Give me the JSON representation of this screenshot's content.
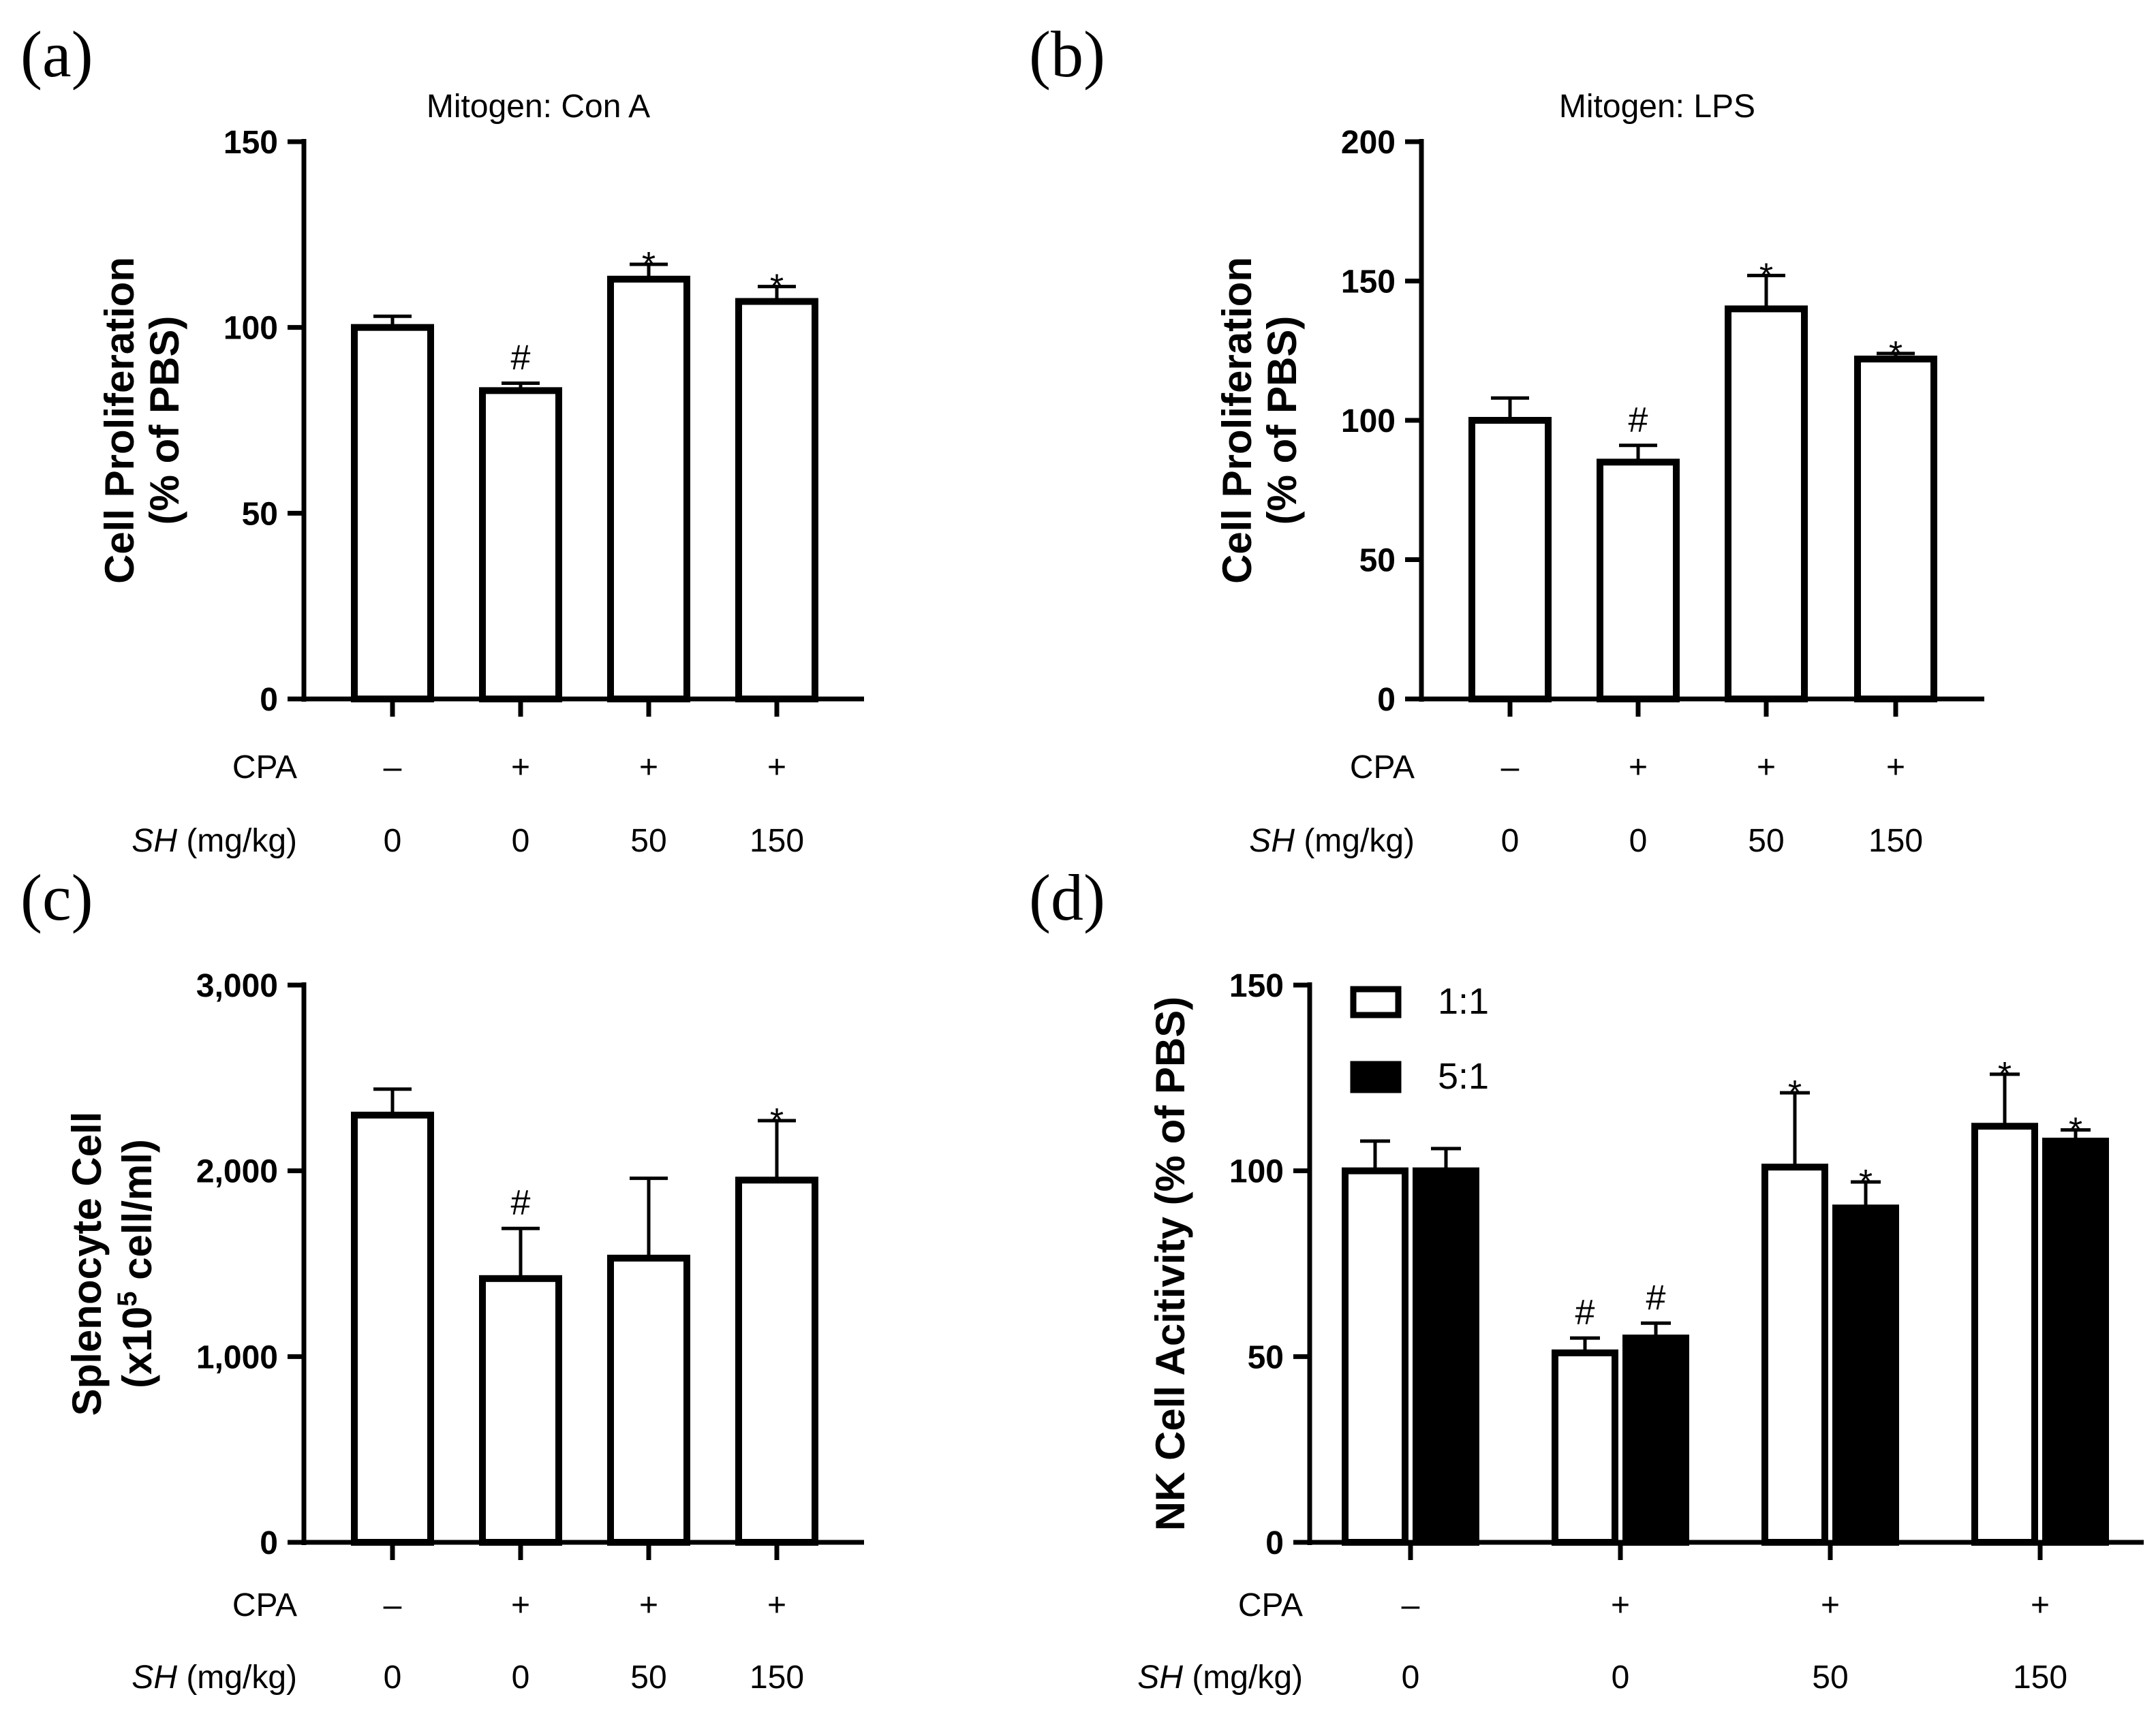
{
  "chart_data": [
    {
      "type": "bar",
      "panel": "(a)",
      "title": "Mitogen: Con A",
      "ylabel_lines": [
        "Cell Proliferation",
        "(% of PBS)"
      ],
      "ylim": [
        0,
        150
      ],
      "yticks": [
        0,
        50,
        100,
        150
      ],
      "ytick_labels": [
        "0",
        "50",
        "100",
        "150"
      ],
      "row_labels": {
        "cpa": "CPA",
        "sh_italic": "SH",
        "sh_units": " (mg/kg)"
      },
      "categories": [
        {
          "cpa": "–",
          "sh": "0"
        },
        {
          "cpa": "+",
          "sh": "0"
        },
        {
          "cpa": "+",
          "sh": "50"
        },
        {
          "cpa": "+",
          "sh": "150"
        }
      ],
      "series": [
        {
          "name": "",
          "fill": "#ffffff",
          "values": [
            100,
            83,
            113,
            107
          ],
          "errors": [
            3,
            2,
            4,
            4
          ],
          "marks": [
            "",
            "#",
            "*",
            "*"
          ]
        }
      ]
    },
    {
      "type": "bar",
      "panel": "(b)",
      "title": "Mitogen: LPS",
      "ylabel_lines": [
        "Cell Proliferation",
        "(% of PBS)"
      ],
      "ylim": [
        0,
        200
      ],
      "yticks": [
        0,
        50,
        100,
        150,
        200
      ],
      "ytick_labels": [
        "0",
        "50",
        "100",
        "150",
        "200"
      ],
      "row_labels": {
        "cpa": "CPA",
        "sh_italic": "SH",
        "sh_units": " (mg/kg)"
      },
      "categories": [
        {
          "cpa": "–",
          "sh": "0"
        },
        {
          "cpa": "+",
          "sh": "0"
        },
        {
          "cpa": "+",
          "sh": "50"
        },
        {
          "cpa": "+",
          "sh": "150"
        }
      ],
      "series": [
        {
          "name": "",
          "fill": "#ffffff",
          "values": [
            100,
            85,
            140,
            122
          ],
          "errors": [
            8,
            6,
            12,
            2
          ],
          "marks": [
            "",
            "#",
            "*",
            "*"
          ]
        }
      ]
    },
    {
      "type": "bar",
      "panel": "(c)",
      "title": "",
      "ylabel_lines": [
        "Splenocyte Cell",
        "(x10",
        "5",
        " cell/ml)"
      ],
      "ylim": [
        0,
        3000
      ],
      "yticks": [
        0,
        1000,
        2000,
        3000
      ],
      "ytick_labels": [
        "0",
        "1,000",
        "2,000",
        "3,000"
      ],
      "row_labels": {
        "cpa": "CPA",
        "sh_italic": "SH",
        "sh_units": " (mg/kg)"
      },
      "categories": [
        {
          "cpa": "–",
          "sh": "0"
        },
        {
          "cpa": "+",
          "sh": "0"
        },
        {
          "cpa": "+",
          "sh": "50"
        },
        {
          "cpa": "+",
          "sh": "150"
        }
      ],
      "series": [
        {
          "name": "",
          "fill": "#ffffff",
          "values": [
            2300,
            1420,
            1530,
            1950
          ],
          "errors": [
            140,
            270,
            430,
            320
          ],
          "marks": [
            "",
            "#",
            "",
            "*"
          ]
        }
      ]
    },
    {
      "type": "bar",
      "panel": "(d)",
      "title": "",
      "ylabel_lines": [
        "NK Cell Acitivity (% of PBS)"
      ],
      "ylim": [
        0,
        150
      ],
      "yticks": [
        0,
        50,
        100,
        150
      ],
      "ytick_labels": [
        "0",
        "50",
        "100",
        "150"
      ],
      "row_labels": {
        "cpa": "CPA",
        "sh_italic": "SH",
        "sh_units": " (mg/kg)"
      },
      "categories": [
        {
          "cpa": "–",
          "sh": "0"
        },
        {
          "cpa": "+",
          "sh": "0"
        },
        {
          "cpa": "+",
          "sh": "50"
        },
        {
          "cpa": "+",
          "sh": "150"
        }
      ],
      "legend": {
        "placement": "top-left"
      },
      "series": [
        {
          "name": "1:1",
          "fill": "#ffffff",
          "values": [
            100,
            51,
            101,
            112
          ],
          "errors": [
            8,
            4,
            20,
            14
          ],
          "marks": [
            "",
            "#",
            "*",
            "*"
          ]
        },
        {
          "name": "5:1",
          "fill": "#000000",
          "values": [
            100,
            55,
            90,
            108
          ],
          "errors": [
            6,
            4,
            7,
            3
          ],
          "marks": [
            "",
            "#",
            "*",
            "*"
          ]
        }
      ]
    }
  ]
}
